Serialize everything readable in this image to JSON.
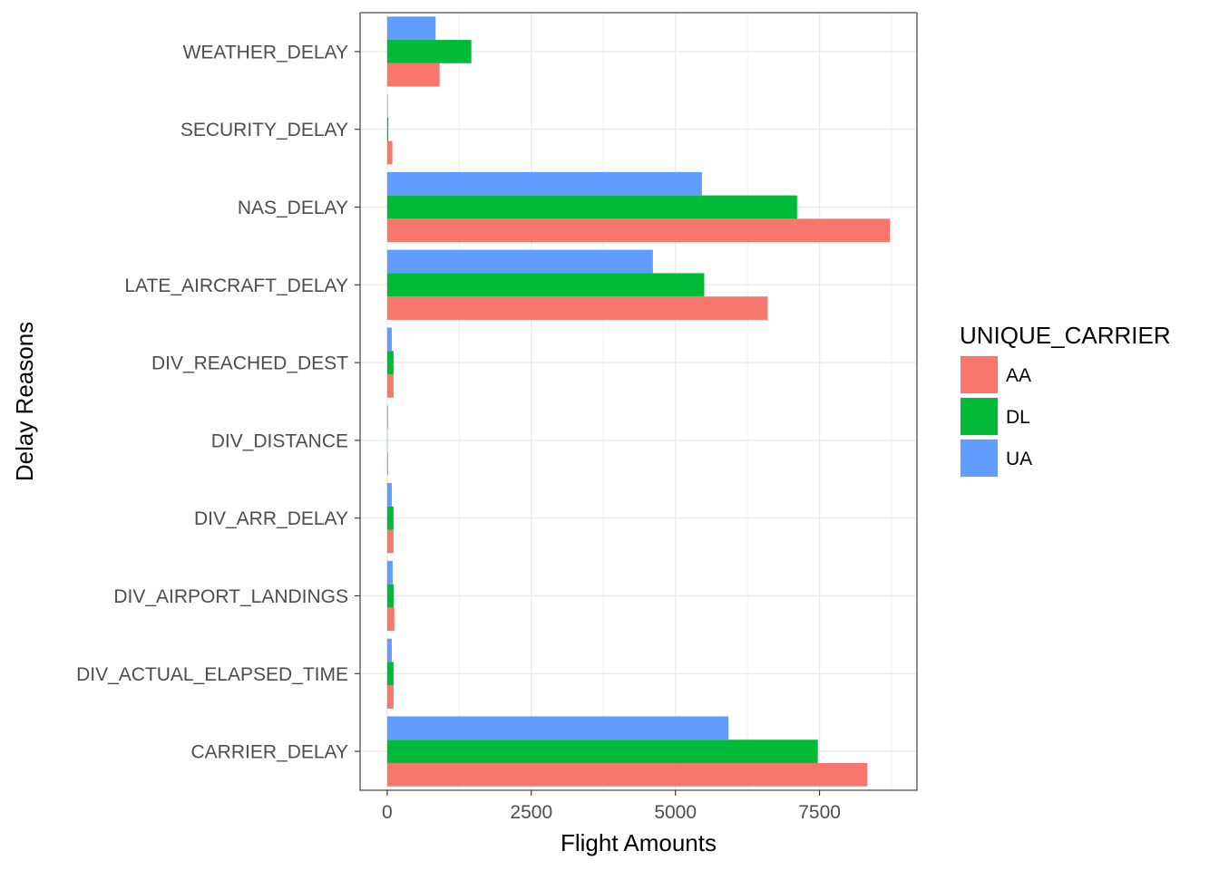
{
  "chart_data": {
    "type": "bar",
    "orientation": "horizontal",
    "title": "",
    "xlabel": "Flight Amounts",
    "ylabel": "Delay Reasons",
    "categories": [
      "CARRIER_DELAY",
      "DIV_ACTUAL_ELAPSED_TIME",
      "DIV_AIRPORT_LANDINGS",
      "DIV_ARR_DELAY",
      "DIV_DISTANCE",
      "DIV_REACHED_DEST",
      "LATE_AIRCRAFT_DELAY",
      "NAS_DELAY",
      "SECURITY_DELAY",
      "WEATHER_DELAY"
    ],
    "series": [
      {
        "name": "AA",
        "color": "#F8766D",
        "values": [
          8330,
          110,
          125,
          110,
          15,
          110,
          6600,
          8720,
          90,
          910
        ]
      },
      {
        "name": "DL",
        "color": "#00BA38",
        "values": [
          7470,
          110,
          115,
          110,
          5,
          110,
          5500,
          7110,
          20,
          1460
        ]
      },
      {
        "name": "UA",
        "color": "#619CFF",
        "values": [
          5920,
          80,
          95,
          80,
          15,
          80,
          4610,
          5460,
          10,
          840
        ]
      }
    ],
    "xlim": [
      -470,
      9190
    ],
    "xticks": [
      0,
      2500,
      5000,
      7500
    ],
    "xtick_labels": [
      "0",
      "2500",
      "5000",
      "7500"
    ],
    "grid": true,
    "legend": {
      "title": "UNIQUE_CARRIER",
      "position": "right"
    }
  }
}
